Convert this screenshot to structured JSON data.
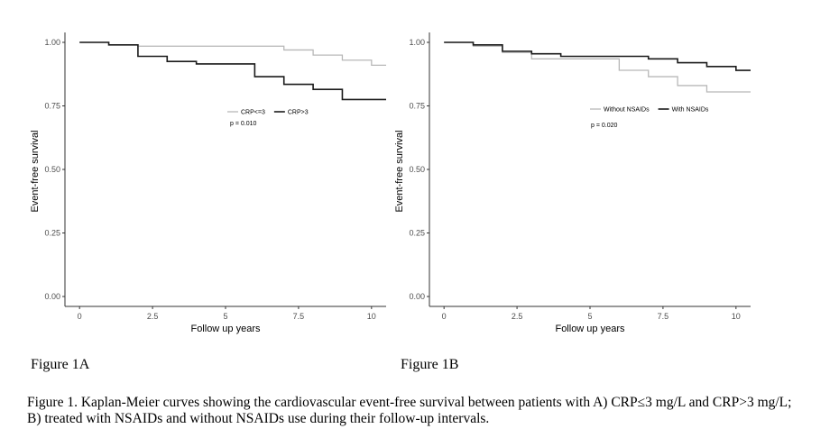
{
  "chart_data": [
    {
      "type": "line",
      "title": "",
      "xlabel": "Follow up years",
      "ylabel": "Event-free survival",
      "xlim": [
        -0.5,
        10.5
      ],
      "ylim": [
        0,
        1
      ],
      "xticks": [
        0,
        2.5,
        5,
        7.5,
        10
      ],
      "xtick_labels": [
        "0",
        "2.5",
        "5",
        "7.5",
        "10"
      ],
      "yticks": [
        0,
        0.25,
        0.5,
        0.75,
        1.0
      ],
      "ytick_labels": [
        "0.00",
        "0.25",
        "0.50",
        "0.75",
        "1.00"
      ],
      "legend": "inside-right",
      "annotation": "p = 0.010",
      "series": [
        {
          "name": "CRP<=3",
          "color": "#b8b8b8",
          "x": [
            0,
            1,
            2,
            7,
            8,
            9,
            10,
            10.5
          ],
          "y": [
            1.0,
            0.99,
            0.985,
            0.97,
            0.95,
            0.93,
            0.91,
            0.91
          ]
        },
        {
          "name": "CRP>3",
          "color": "#1a1a1a",
          "x": [
            0,
            1,
            2,
            3,
            4,
            6,
            7,
            8,
            9,
            10.5
          ],
          "y": [
            1.0,
            0.99,
            0.945,
            0.925,
            0.915,
            0.865,
            0.835,
            0.815,
            0.775,
            0.775
          ]
        }
      ]
    },
    {
      "type": "line",
      "title": "",
      "xlabel": "Follow up years",
      "ylabel": "Event-free survival",
      "xlim": [
        -0.5,
        10.5
      ],
      "ylim": [
        0,
        1
      ],
      "xticks": [
        0,
        2.5,
        5,
        7.5,
        10
      ],
      "xtick_labels": [
        "0",
        "2.5",
        "5",
        "7.5",
        "10"
      ],
      "yticks": [
        0,
        0.25,
        0.5,
        0.75,
        1.0
      ],
      "ytick_labels": [
        "0.00",
        "0.25",
        "0.50",
        "0.75",
        "1.00"
      ],
      "legend": "inside-right",
      "annotation": "p = 0.020",
      "series": [
        {
          "name": "Without NSAIDs",
          "color": "#b8b8b8",
          "x": [
            0,
            1,
            2,
            3,
            6,
            7,
            8,
            9,
            10.5
          ],
          "y": [
            1.0,
            0.985,
            0.96,
            0.935,
            0.89,
            0.865,
            0.83,
            0.805,
            0.805
          ]
        },
        {
          "name": "With NSAIDs",
          "color": "#1a1a1a",
          "x": [
            0,
            1,
            2,
            3,
            4,
            7,
            8,
            9,
            10,
            10.5
          ],
          "y": [
            1.0,
            0.99,
            0.965,
            0.955,
            0.945,
            0.935,
            0.92,
            0.905,
            0.89,
            0.89
          ]
        }
      ]
    }
  ],
  "figure_labels": [
    "Figure 1A",
    "Figure 1B"
  ],
  "caption": {
    "line1": "Figure 1. Kaplan-Meier curves showing the cardiovascular event-free survival between patients with A) CRP≤3 mg/L and CRP>3 mg/L;",
    "line2": "B) treated with NSAIDs and without NSAIDs use during their follow-up intervals."
  }
}
